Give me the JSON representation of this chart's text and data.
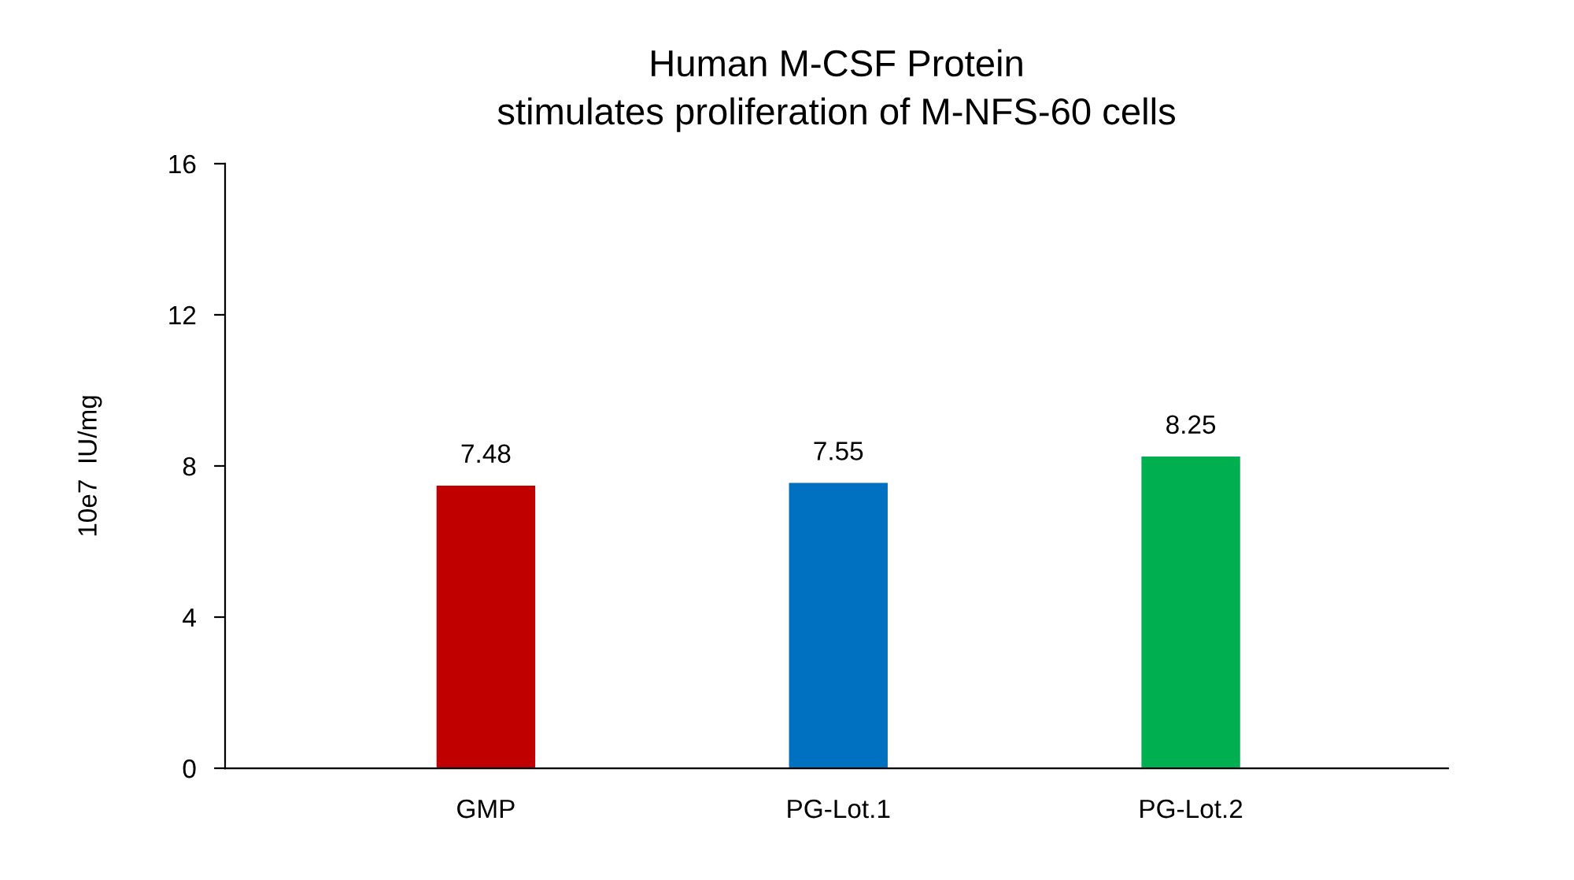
{
  "chart_data": {
    "type": "bar",
    "title": "Human M-CSF Protein\nstimulates proliferation of M-NFS-60 cells",
    "ylabel": "10e7  IU/mg",
    "categories": [
      "GMP",
      "PG-Lot.1",
      "PG-Lot.2"
    ],
    "values": [
      7.48,
      7.55,
      8.25
    ],
    "colors": [
      "#c00000",
      "#0070c0",
      "#00b050"
    ],
    "ylim": [
      0,
      16
    ],
    "yticks": [
      0,
      4,
      8,
      12,
      16
    ],
    "grid": false,
    "data_labels": true
  }
}
